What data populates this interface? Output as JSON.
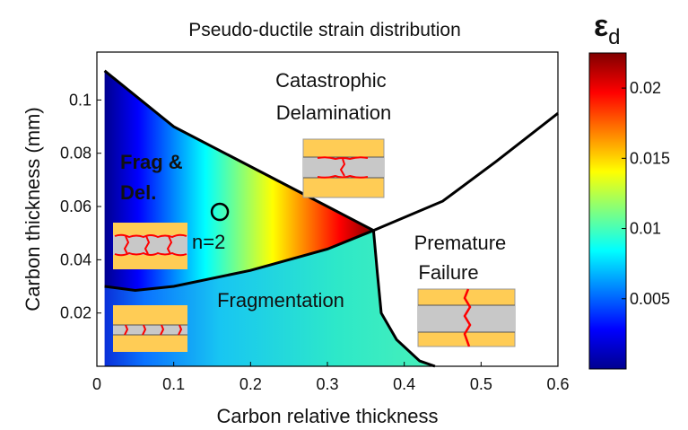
{
  "chart_data": {
    "type": "heatmap",
    "title": "Pseudo-ductile strain distribution",
    "xlabel": "Carbon relative thickness",
    "ylabel": "Carbon thickness (mm)",
    "xlim": [
      0,
      0.6
    ],
    "ylim": [
      0,
      0.118
    ],
    "x_ticks": [
      {
        "value": 0,
        "label": "0"
      },
      {
        "value": 0.1,
        "label": "0.1"
      },
      {
        "value": 0.2,
        "label": "0.2"
      },
      {
        "value": 0.3,
        "label": "0.3"
      },
      {
        "value": 0.4,
        "label": "0.4"
      },
      {
        "value": 0.5,
        "label": "0.5"
      },
      {
        "value": 0.6,
        "label": "0.6"
      }
    ],
    "y_ticks": [
      {
        "value": 0.02,
        "label": "0.02"
      },
      {
        "value": 0.04,
        "label": "0.04"
      },
      {
        "value": 0.06,
        "label": "0.06"
      },
      {
        "value": 0.08,
        "label": "0.08"
      },
      {
        "value": 0.1,
        "label": "0.1"
      }
    ],
    "colorbar": {
      "symbol": "ε",
      "subscript": "d",
      "range": [
        0,
        0.0225
      ],
      "colormap": "jet",
      "ticks": [
        {
          "value": 0.005,
          "label": "0.005"
        },
        {
          "value": 0.01,
          "label": "0.01"
        },
        {
          "value": 0.015,
          "label": "0.015"
        },
        {
          "value": 0.02,
          "label": "0.02"
        }
      ]
    },
    "boundaries": {
      "upper_frag_delamination": [
        [
          0.01,
          0.111
        ],
        [
          0.1,
          0.09
        ],
        [
          0.2,
          0.075
        ],
        [
          0.3,
          0.06
        ],
        [
          0.36,
          0.051
        ]
      ],
      "lower_fragmentation": [
        [
          0.01,
          0.03
        ],
        [
          0.05,
          0.0285
        ],
        [
          0.1,
          0.03
        ],
        [
          0.2,
          0.036
        ],
        [
          0.3,
          0.044
        ],
        [
          0.36,
          0.051
        ]
      ],
      "catastrophic_premature": [
        [
          0.36,
          0.051
        ],
        [
          0.45,
          0.062
        ],
        [
          0.52,
          0.077
        ],
        [
          0.6,
          0.095
        ]
      ],
      "premature_fragmentation": [
        [
          0.36,
          0.051
        ],
        [
          0.365,
          0.035
        ],
        [
          0.37,
          0.02
        ],
        [
          0.39,
          0.01
        ],
        [
          0.42,
          0.002
        ],
        [
          0.44,
          0
        ]
      ]
    },
    "annotations": [
      {
        "id": "catastrophic",
        "lines": [
          "Catastrophic",
          "Delamination"
        ]
      },
      {
        "id": "frag_del",
        "lines": [
          "Frag &",
          "Del."
        ]
      },
      {
        "id": "n2",
        "text": "n=2",
        "marker": {
          "x": 0.16,
          "y": 0.058
        }
      },
      {
        "id": "premature",
        "lines": [
          "Premature",
          "Failure"
        ]
      },
      {
        "id": "fragmentation",
        "text": "Fragmentation"
      }
    ]
  },
  "palette": {
    "frame": "#000000",
    "laminate_glass": "#ffcc55",
    "laminate_carbon": "#c8c8c8",
    "crack": "#ff0000"
  }
}
